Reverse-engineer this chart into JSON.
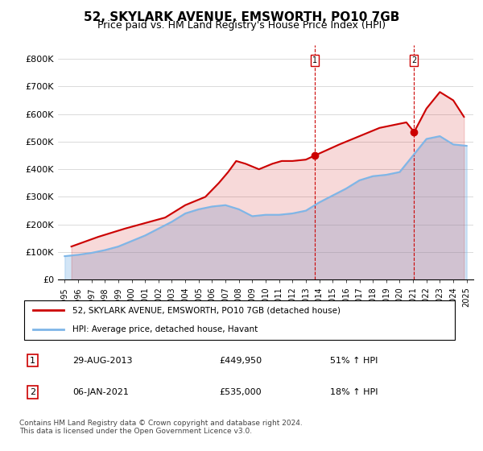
{
  "title": "52, SKYLARK AVENUE, EMSWORTH, PO10 7GB",
  "subtitle": "Price paid vs. HM Land Registry's House Price Index (HPI)",
  "title_fontsize": 12,
  "subtitle_fontsize": 10,
  "ylabel": "",
  "ylim": [
    0,
    850000
  ],
  "yticks": [
    0,
    100000,
    200000,
    300000,
    400000,
    500000,
    600000,
    700000,
    800000
  ],
  "ytick_labels": [
    "£0",
    "£100K",
    "£200K",
    "£300K",
    "£400K",
    "£500K",
    "£600K",
    "£700K",
    "£800K"
  ],
  "hpi_color": "#7EB6E8",
  "price_color": "#CC0000",
  "sale1_date": "29-AUG-2013",
  "sale1_price": 449950,
  "sale1_label": "1",
  "sale1_hpi_pct": "51% ↑ HPI",
  "sale2_date": "06-JAN-2021",
  "sale2_price": 535000,
  "sale2_label": "2",
  "sale2_hpi_pct": "18% ↑ HPI",
  "legend_line1": "52, SKYLARK AVENUE, EMSWORTH, PO10 7GB (detached house)",
  "legend_line2": "HPI: Average price, detached house, Havant",
  "footer": "Contains HM Land Registry data © Crown copyright and database right 2024.\nThis data is licensed under the Open Government Licence v3.0.",
  "x_years": [
    1995,
    1996,
    1997,
    1998,
    1999,
    2000,
    2001,
    2002,
    2003,
    2004,
    2005,
    2006,
    2007,
    2008,
    2009,
    2010,
    2011,
    2012,
    2013,
    2014,
    2015,
    2016,
    2017,
    2018,
    2019,
    2020,
    2021,
    2022,
    2023,
    2024,
    2025
  ],
  "hpi_values": [
    85000,
    90000,
    97000,
    107000,
    120000,
    140000,
    160000,
    185000,
    210000,
    240000,
    255000,
    265000,
    270000,
    255000,
    230000,
    235000,
    235000,
    240000,
    250000,
    280000,
    305000,
    330000,
    360000,
    375000,
    380000,
    390000,
    450000,
    510000,
    520000,
    490000,
    485000
  ],
  "price_values_x": [
    1995.5,
    1997.5,
    1999.5,
    2001.0,
    2002.5,
    2004.0,
    2005.5,
    2006.5,
    2007.2,
    2007.8,
    2008.5,
    2009.5,
    2010.5,
    2011.2,
    2012.0,
    2013.0,
    2013.67,
    2015.5,
    2016.5,
    2017.5,
    2018.5,
    2019.5,
    2020.5,
    2021.08,
    2022.0,
    2023.0,
    2024.0,
    2024.8
  ],
  "price_values_y": [
    120000,
    155000,
    185000,
    205000,
    225000,
    270000,
    300000,
    350000,
    390000,
    430000,
    420000,
    400000,
    420000,
    430000,
    430000,
    435000,
    449950,
    490000,
    510000,
    530000,
    550000,
    560000,
    570000,
    535000,
    620000,
    680000,
    650000,
    590000
  ]
}
